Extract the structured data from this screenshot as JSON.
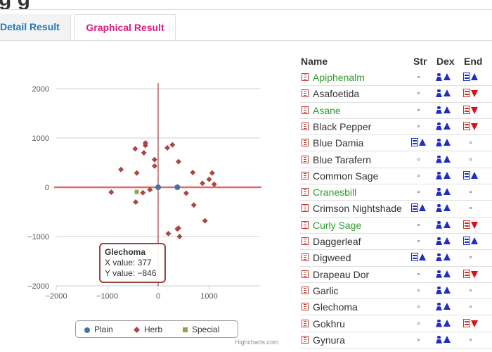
{
  "page": {
    "heading_fragment": "g g"
  },
  "tabs": [
    {
      "label": "Detail Result",
      "active": false
    },
    {
      "label": "Graphical Result",
      "active": true
    }
  ],
  "colors": {
    "plain": "#4572a7",
    "herb": "#aa4643",
    "special": "#89a54e",
    "active_tab": "#e0197d",
    "inactive_tab": "#1a78c2",
    "green_name": "#2e9e2e"
  },
  "chart_data": {
    "type": "scatter",
    "x_ticks": [
      "−2000",
      "−1000",
      "0",
      "1000"
    ],
    "y_ticks": [
      "2000",
      "1000",
      "0",
      "−1000",
      "−2000"
    ],
    "xlim": [
      -2000,
      2000
    ],
    "ylim": [
      -2000,
      2000
    ],
    "series": [
      {
        "name": "Plain",
        "points": [
          [
            0,
            0
          ],
          [
            377,
            0
          ]
        ]
      },
      {
        "name": "Herb",
        "points": [
          [
            -250,
            900
          ],
          [
            -250,
            850
          ],
          [
            -450,
            780
          ],
          [
            -280,
            700
          ],
          [
            -70,
            560
          ],
          [
            -70,
            430
          ],
          [
            280,
            860
          ],
          [
            180,
            800
          ],
          [
            400,
            520
          ],
          [
            -730,
            360
          ],
          [
            -420,
            290
          ],
          [
            680,
            300
          ],
          [
            1060,
            290
          ],
          [
            1000,
            160
          ],
          [
            870,
            80
          ],
          [
            1100,
            60
          ],
          [
            -920,
            -100
          ],
          [
            -300,
            -110
          ],
          [
            -160,
            -50
          ],
          [
            550,
            -120
          ],
          [
            700,
            -360
          ],
          [
            920,
            -680
          ],
          [
            377,
            -846
          ],
          [
            400,
            -830
          ],
          [
            200,
            -940
          ],
          [
            420,
            -1000
          ],
          [
            -440,
            -300
          ]
        ]
      },
      {
        "name": "Special",
        "points": [
          [
            -420,
            -95
          ]
        ]
      }
    ],
    "tooltip": {
      "title": "Glechoma",
      "x_label": "X value: 377",
      "y_label": "Y value: −846"
    },
    "legend": [
      "Plain",
      "Herb",
      "Special"
    ],
    "credit": "Highcharts.com"
  },
  "table": {
    "headers": [
      "Name",
      "Str",
      "Dex",
      "End"
    ],
    "rows": [
      {
        "name": "Apiphenalm",
        "green": true,
        "str": "dot",
        "dex": "up",
        "end": "up"
      },
      {
        "name": "Asafoetida",
        "green": false,
        "str": "dot",
        "dex": "up",
        "end": "down"
      },
      {
        "name": "Asane",
        "green": true,
        "str": "dot",
        "dex": "up",
        "end": "down"
      },
      {
        "name": "Black Pepper",
        "green": false,
        "str": "dot",
        "dex": "up",
        "end": "down"
      },
      {
        "name": "Blue Damia",
        "green": false,
        "str": "up",
        "dex": "up",
        "end": "dot"
      },
      {
        "name": "Blue Tarafern",
        "green": false,
        "str": "dot",
        "dex": "up",
        "end": "dot"
      },
      {
        "name": "Common Sage",
        "green": false,
        "str": "dot",
        "dex": "up",
        "end": "up"
      },
      {
        "name": "Cranesbill",
        "green": true,
        "str": "dot",
        "dex": "up",
        "end": "dot"
      },
      {
        "name": "Crimson Nightshade",
        "green": false,
        "str": "up",
        "dex": "up",
        "end": "dot"
      },
      {
        "name": "Curly Sage",
        "green": true,
        "str": "dot",
        "dex": "up",
        "end": "down"
      },
      {
        "name": "Daggerleaf",
        "green": false,
        "str": "dot",
        "dex": "up",
        "end": "up"
      },
      {
        "name": "Digweed",
        "green": false,
        "str": "up",
        "dex": "up",
        "end": "dot"
      },
      {
        "name": "Drapeau Dor",
        "green": false,
        "str": "dot",
        "dex": "up",
        "end": "down"
      },
      {
        "name": "Garlic",
        "green": false,
        "str": "dot",
        "dex": "up",
        "end": "dot"
      },
      {
        "name": "Glechoma",
        "green": false,
        "str": "dot",
        "dex": "up",
        "end": "dot"
      },
      {
        "name": "Gokhru",
        "green": false,
        "str": "dot",
        "dex": "up",
        "end": "down"
      },
      {
        "name": "Gynura",
        "green": false,
        "str": "dot",
        "dex": "up",
        "end": "dot"
      }
    ]
  }
}
